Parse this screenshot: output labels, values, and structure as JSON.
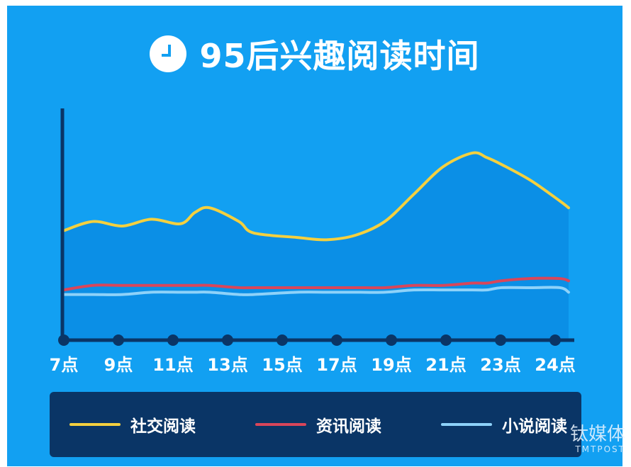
{
  "title": "95后兴趣阅读时间",
  "watermark": {
    "main": "钛媒体",
    "sub": "TMTPOST"
  },
  "colors": {
    "background": "#12a0f2",
    "area_fill": "#0b8fe6",
    "axis": "#0a3566",
    "legend_bg": "#0a3566"
  },
  "chart_data": {
    "type": "line",
    "categories": [
      "7点",
      "9点",
      "11点",
      "13点",
      "15点",
      "17点",
      "19点",
      "21点",
      "23点",
      "24点"
    ],
    "x": [
      7,
      8,
      9,
      10,
      11,
      11.5,
      12,
      13,
      13.5,
      15,
      16,
      17,
      18,
      19,
      20,
      21,
      21.5,
      22,
      23,
      24,
      24.3
    ],
    "ylim": [
      0,
      100
    ],
    "series": [
      {
        "name": "社交阅读",
        "color": "#f4d03f",
        "values": [
          48,
          52,
          50,
          53,
          51,
          56,
          58,
          52,
          47,
          45,
          44,
          46,
          52,
          64,
          76,
          82,
          80,
          77,
          70,
          61,
          58
        ]
      },
      {
        "name": "资讯阅读",
        "color": "#d9465a",
        "values": [
          22,
          24,
          24,
          24,
          24,
          24,
          24,
          23,
          23,
          23,
          23,
          23,
          23,
          24,
          24,
          25,
          25,
          26,
          27,
          27,
          26
        ]
      },
      {
        "name": "小说阅读",
        "color": "#8ed2f9",
        "values": [
          20,
          20,
          20,
          21,
          21,
          21,
          21,
          20,
          20,
          21,
          21,
          21,
          21,
          22,
          22,
          22,
          22,
          23,
          23,
          23,
          21
        ]
      }
    ],
    "legend": "bottom",
    "grid": false
  }
}
